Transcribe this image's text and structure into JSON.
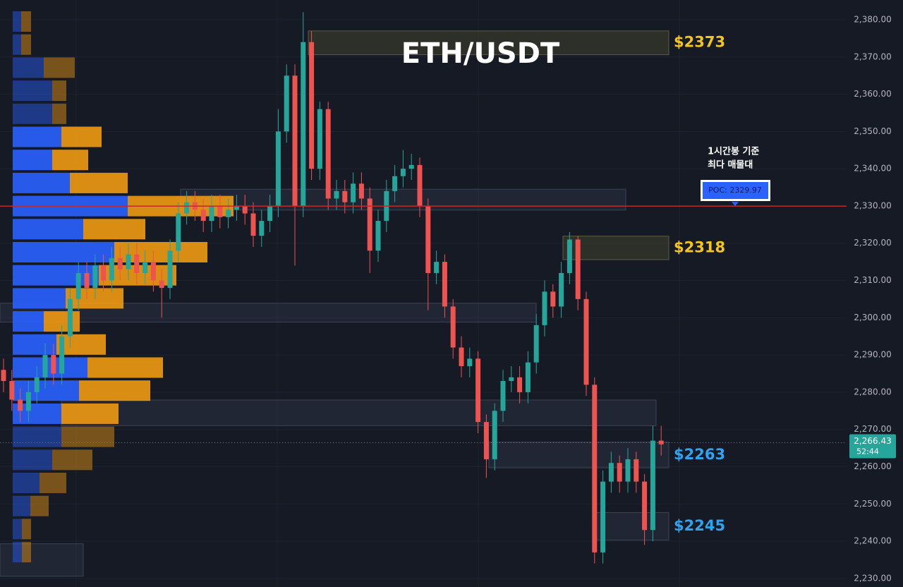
{
  "chart_data": {
    "type": "candlestick",
    "title": "ETH/USDT",
    "ylim": [
      2227.7,
      2385.3
    ],
    "yticks": [
      {
        "value": 2230,
        "label": "2,230.00"
      },
      {
        "value": 2240,
        "label": "2,240.00"
      },
      {
        "value": 2250,
        "label": "2,250.00"
      },
      {
        "value": 2260,
        "label": "2,260.00"
      },
      {
        "value": 2270,
        "label": "2,270.00"
      },
      {
        "value": 2280,
        "label": "2,280.00"
      },
      {
        "value": 2290,
        "label": "2,290.00"
      },
      {
        "value": 2300,
        "label": "2,300.00"
      },
      {
        "value": 2310,
        "label": "2,310.00"
      },
      {
        "value": 2320,
        "label": "2,320.00"
      },
      {
        "value": 2330,
        "label": "2,330.00"
      },
      {
        "value": 2340,
        "label": "2,340.00"
      },
      {
        "value": 2350,
        "label": "2,350.00"
      },
      {
        "value": 2360,
        "label": "2,360.00"
      },
      {
        "value": 2370,
        "label": "2,370.00"
      },
      {
        "value": 2380,
        "label": "2,380.00"
      }
    ],
    "grid": true,
    "up_color": "#26a69a",
    "down_color": "#ef5350",
    "series": {
      "open": [
        2286,
        2283,
        2278,
        2275,
        2280,
        2284,
        2290,
        2285,
        2295,
        2305,
        2312,
        2308,
        2314,
        2310,
        2316,
        2313,
        2317,
        2312,
        2315,
        2310,
        2308,
        2318,
        2328,
        2331,
        2329,
        2326,
        2330,
        2327,
        2329,
        2330,
        2328,
        2322,
        2326,
        2330,
        2350,
        2365,
        2330,
        2374,
        2340,
        2356,
        2332,
        2334,
        2331,
        2336,
        2332,
        2318,
        2326,
        2334,
        2338,
        2340,
        2341,
        2330,
        2312,
        2315,
        2303,
        2292,
        2287,
        2289,
        2272,
        2262,
        2275,
        2283,
        2284,
        2280,
        2288,
        2298,
        2307,
        2303,
        2312,
        2321,
        2305,
        2282,
        2237,
        2256,
        2261,
        2256,
        2262,
        2256,
        2243,
        2267
      ],
      "high": [
        2289,
        2286,
        2281,
        2283,
        2287,
        2293,
        2293,
        2298,
        2308,
        2315,
        2315,
        2317,
        2317,
        2319,
        2319,
        2320,
        2320,
        2318,
        2318,
        2313,
        2321,
        2331,
        2334,
        2334,
        2332,
        2333,
        2333,
        2332,
        2333,
        2333,
        2331,
        2329,
        2333,
        2356,
        2368,
        2368,
        2382,
        2377,
        2358,
        2358,
        2337,
        2337,
        2339,
        2339,
        2335,
        2329,
        2337,
        2341,
        2345,
        2344,
        2343,
        2332,
        2318,
        2317,
        2305,
        2295,
        2292,
        2291,
        2274,
        2277,
        2286,
        2287,
        2287,
        2291,
        2301,
        2310,
        2309,
        2315,
        2323,
        2322,
        2307,
        2284,
        2259,
        2264,
        2263,
        2265,
        2264,
        2258,
        2271,
        2271
      ],
      "low": [
        2280,
        2275,
        2272,
        2272,
        2277,
        2281,
        2282,
        2282,
        2292,
        2302,
        2305,
        2305,
        2307,
        2307,
        2310,
        2310,
        2309,
        2309,
        2307,
        2300,
        2305,
        2315,
        2325,
        2326,
        2323,
        2323,
        2324,
        2324,
        2326,
        2325,
        2319,
        2319,
        2323,
        2327,
        2347,
        2314,
        2327,
        2337,
        2337,
        2329,
        2329,
        2328,
        2328,
        2329,
        2312,
        2315,
        2323,
        2331,
        2335,
        2337,
        2327,
        2302,
        2309,
        2300,
        2289,
        2284,
        2284,
        2269,
        2257,
        2259,
        2272,
        2280,
        2277,
        2277,
        2285,
        2295,
        2300,
        2300,
        2309,
        2302,
        2279,
        2234,
        2234,
        2253,
        2253,
        2253,
        2253,
        2239,
        2240,
        2263
      ],
      "close": [
        2283,
        2278,
        2275,
        2280,
        2284,
        2290,
        2285,
        2295,
        2305,
        2312,
        2308,
        2314,
        2310,
        2316,
        2313,
        2317,
        2312,
        2315,
        2310,
        2308,
        2318,
        2328,
        2331,
        2329,
        2326,
        2330,
        2327,
        2329,
        2330,
        2328,
        2322,
        2326,
        2330,
        2350,
        2365,
        2330,
        2374,
        2340,
        2356,
        2332,
        2334,
        2331,
        2336,
        2332,
        2318,
        2326,
        2334,
        2338,
        2340,
        2341,
        2330,
        2312,
        2315,
        2303,
        2292,
        2287,
        2289,
        2272,
        2262,
        2275,
        2283,
        2284,
        2280,
        2288,
        2298,
        2307,
        2303,
        2312,
        2321,
        2305,
        2282,
        2237,
        2256,
        2261,
        2256,
        2262,
        2256,
        2243,
        2267,
        2266
      ]
    },
    "volume_profile": {
      "buy_color": "#2962ff",
      "sell_color": "#f09a12",
      "buy": [
        12,
        12,
        44,
        56,
        56,
        69,
        56,
        81,
        163,
        100,
        144,
        122,
        75,
        44,
        62,
        106,
        94,
        69,
        69,
        56,
        38,
        25,
        13,
        13
      ],
      "sell": [
        14,
        14,
        44,
        20,
        20,
        57,
        51,
        82,
        150,
        88,
        132,
        110,
        82,
        51,
        70,
        107,
        101,
        81,
        75,
        57,
        38,
        26,
        13,
        13
      ]
    },
    "zones": [
      {
        "from": 2370.6,
        "to": 2377.0,
        "label": "$2373",
        "label_color": "#f5c518"
      },
      {
        "from": 2328.9,
        "to": 2334.5
      },
      {
        "from": 2315.6,
        "to": 2321.9,
        "label": "$2318",
        "label_color": "#f5c518"
      },
      {
        "from": 2298.8,
        "to": 2303.9
      },
      {
        "from": 2271.0,
        "to": 2277.9
      },
      {
        "from": 2259.7,
        "to": 2266.6,
        "label": "$2263",
        "label_color": "#2ea3f2"
      },
      {
        "from": 2240.3,
        "to": 2247.7,
        "label": "$2245",
        "label_color": "#2ea3f2"
      },
      {
        "from": 2230.6,
        "to": 2239.3
      }
    ],
    "poc": {
      "value": 2329.97,
      "label": "POC: 2329.97",
      "color": "#c62828"
    },
    "annotation": [
      "1시간봉 기준",
      "최다 매물대"
    ],
    "last_price": {
      "value": 2266.43,
      "label": "2,266.43",
      "countdown": "52:44",
      "color": "#26a69a"
    }
  }
}
